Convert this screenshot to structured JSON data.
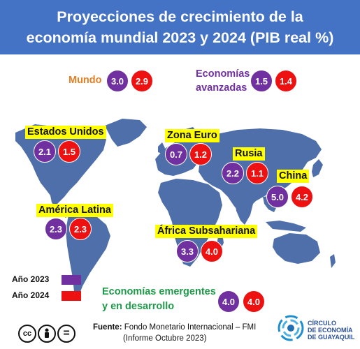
{
  "title": {
    "line1": "Proyecciones de crecimiento de la",
    "line2": "economía mundial 2023 y 2024 (PIB real %)"
  },
  "mundo": {
    "label": "Mundo",
    "v2023": "3.0",
    "v2024": "2.9"
  },
  "avanzadas": {
    "label_line1": "Economías",
    "label_line2": "avanzadas",
    "v2023": "1.5",
    "v2024": "1.4"
  },
  "regions": {
    "estados_unidos": {
      "label": "Estados Unidos",
      "v2023": "2.1",
      "v2024": "1.5"
    },
    "zona_euro": {
      "label": "Zona Euro",
      "v2023": "0.7",
      "v2024": "1.2"
    },
    "rusia": {
      "label": "Rusia",
      "v2023": "2.2",
      "v2024": "1.1"
    },
    "china": {
      "label": "China",
      "v2023": "5.0",
      "v2024": "4.2"
    },
    "america_latina": {
      "label": "América Latina",
      "v2023": "2.3",
      "v2024": "2.3"
    },
    "africa": {
      "label": "África Subsahariana",
      "v2023": "3.3",
      "v2024": "4.0"
    }
  },
  "legend": {
    "y2023": {
      "label": "Año 2023",
      "color": "#7030a0"
    },
    "y2024": {
      "label": "Año 2024",
      "color": "#ee1111"
    }
  },
  "emergentes": {
    "label_line1": "Economías emergentes",
    "label_line2": "y en desarrollo",
    "v2023": "4.0",
    "v2024": "4.0"
  },
  "source": {
    "label": "Fuente:",
    "text": "Fondo Monetario Internacional – FMI",
    "text2": "(Informe Octubre 2023)"
  },
  "logo": {
    "line1": "CÍRCULO",
    "line2": "DE ECONOMÍA",
    "line3": "DE GUAYAQUIL"
  },
  "license": {
    "icon1": "cc",
    "icon2": "person",
    "icon3": "="
  },
  "colors": {
    "header": "#4472c4",
    "map": "#4f6faa",
    "y2023": "#7030a0",
    "y2024": "#ee1111",
    "mundo": "#e67e22",
    "avanzadas": "#7030a0",
    "emergentes": "#1e9a48"
  }
}
